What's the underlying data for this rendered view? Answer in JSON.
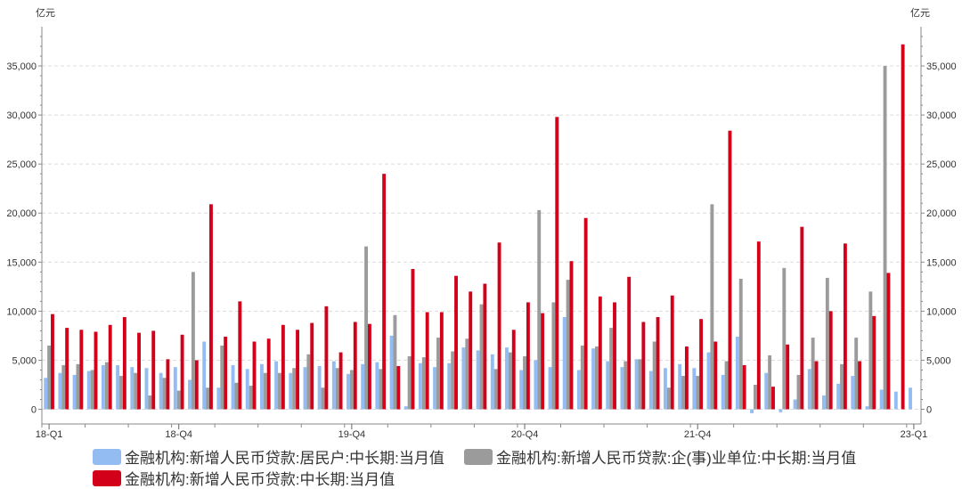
{
  "chart_data": {
    "type": "bar",
    "unit_left": "亿元",
    "unit_right": "亿元",
    "x_tick_labels": [
      "18-Q1",
      "18-Q4",
      "19-Q4",
      "20-Q4",
      "21-Q4",
      "23-Q1"
    ],
    "y_ticks": [
      "0",
      "5,000",
      "10,000",
      "15,000",
      "20,000",
      "25,000",
      "30,000",
      "35,000"
    ],
    "ylim": [
      -1500,
      39000
    ],
    "grid": true,
    "legend_position": "bottom",
    "categories": [
      "2018-01",
      "2018-02",
      "2018-03",
      "2018-04",
      "2018-05",
      "2018-06",
      "2018-07",
      "2018-08",
      "2018-09",
      "2018-10",
      "2018-11",
      "2018-12",
      "2019-01",
      "2019-02",
      "2019-03",
      "2019-04",
      "2019-05",
      "2019-06",
      "2019-07",
      "2019-08",
      "2019-09",
      "2019-10",
      "2019-11",
      "2019-12",
      "2020-01",
      "2020-02",
      "2020-03",
      "2020-04",
      "2020-05",
      "2020-06",
      "2020-07",
      "2020-08",
      "2020-09",
      "2020-10",
      "2020-11",
      "2020-12",
      "2021-01",
      "2021-02",
      "2021-03",
      "2021-04",
      "2021-05",
      "2021-06",
      "2021-07",
      "2021-08",
      "2021-09",
      "2021-10",
      "2021-11",
      "2021-12",
      "2022-01",
      "2022-02",
      "2022-03",
      "2022-04",
      "2022-05",
      "2022-06",
      "2022-07",
      "2022-08",
      "2022-09",
      "2022-10",
      "2022-11",
      "2022-12",
      "2023-01"
    ],
    "series": [
      {
        "name": "金融机构:新增人民币贷款:居民户:中长期:当月值",
        "color": "#93bdf2",
        "values": [
          3200,
          3700,
          3500,
          3900,
          4500,
          4500,
          4300,
          4200,
          3700,
          4300,
          3000,
          6900,
          2200,
          4500,
          4100,
          4600,
          4900,
          3700,
          4300,
          4400,
          4900,
          3600,
          4600,
          4800,
          7500,
          300,
          4700,
          4300,
          4700,
          6300,
          6000,
          5600,
          6300,
          4000,
          5000,
          4300,
          9400,
          4000,
          6200,
          4900,
          4300,
          5100,
          3900,
          4200,
          4600,
          4200,
          5800,
          3500,
          7400,
          -400,
          3700,
          -300,
          1000,
          4100,
          1400,
          2600,
          3400,
          300,
          2000,
          1800,
          2200
        ]
      },
      {
        "name": "金融机构:新增人民币贷款:企(事)业单位:中长期:当月值",
        "color": "#9b9b9b",
        "values": [
          6500,
          4500,
          4600,
          4000,
          4800,
          3400,
          3700,
          1400,
          3200,
          1900,
          14000,
          2200,
          6500,
          2700,
          2400,
          3700,
          3700,
          4200,
          5600,
          2200,
          4200,
          4000,
          16600,
          4100,
          9600,
          5400,
          5300,
          7300,
          5900,
          7200,
          10700,
          4100,
          5800,
          5400,
          20300,
          10900,
          13200,
          6500,
          6400,
          8300,
          4900,
          5100,
          6900,
          2200,
          3400,
          3400,
          20900,
          4900,
          13300,
          2500,
          5500,
          14400,
          3500,
          7300,
          13400,
          4600,
          7300,
          12000,
          35000,
          0,
          0
        ]
      },
      {
        "name": "金融机构:新增人民币贷款:中长期:当月值",
        "color": "#d3001a",
        "values": [
          9700,
          8300,
          8100,
          7900,
          8600,
          9400,
          7800,
          8000,
          5100,
          7600,
          5000,
          20900,
          7400,
          11000,
          6900,
          7200,
          8600,
          8100,
          8800,
          10500,
          5800,
          8900,
          8700,
          24000,
          4400,
          14300,
          9900,
          9900,
          13600,
          12000,
          12800,
          17000,
          8100,
          10900,
          9800,
          29800,
          15100,
          19500,
          11500,
          10900,
          13500,
          8900,
          9400,
          11600,
          6400,
          9200,
          6900,
          28400,
          4500,
          17100,
          2300,
          6600,
          18600,
          4900,
          10000,
          16900,
          4900,
          9500,
          13900,
          37200,
          0
        ]
      }
    ]
  },
  "legend": {
    "items": [
      "金融机构:新增人民币贷款:居民户:中长期:当月值",
      "金融机构:新增人民币贷款:企(事)业单位:中长期:当月值",
      "金融机构:新增人民币贷款:中长期:当月值"
    ],
    "colors": [
      "#93bdf2",
      "#9b9b9b",
      "#d3001a"
    ]
  }
}
